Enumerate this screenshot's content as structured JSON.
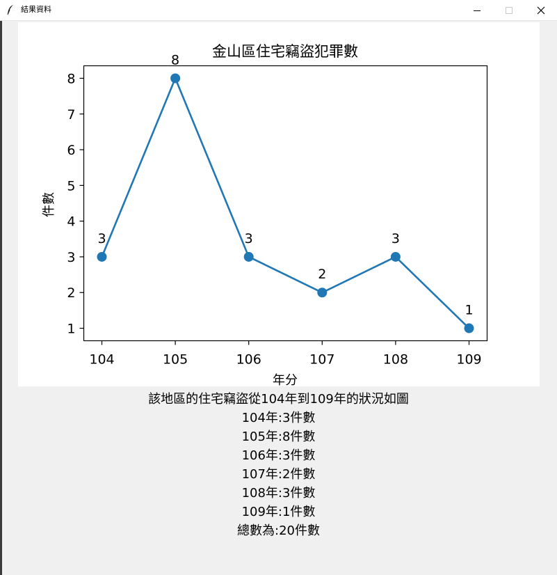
{
  "window": {
    "title": "結果資料",
    "icon": "feather-icon"
  },
  "chart_data": {
    "type": "line",
    "title": "金山區住宅竊盜犯罪數",
    "xlabel": "年分",
    "ylabel": "件數",
    "categories": [
      "104",
      "105",
      "106",
      "107",
      "108",
      "109"
    ],
    "values": [
      3,
      8,
      3,
      2,
      3,
      1
    ],
    "data_labels": [
      "3",
      "8",
      "3",
      "2",
      "3",
      "1"
    ],
    "yticks": [
      "1",
      "2",
      "3",
      "4",
      "5",
      "6",
      "7",
      "8"
    ],
    "ylim": [
      0.65,
      8.35
    ],
    "color": "#1f77b4",
    "grid": false
  },
  "summary": {
    "intro": "該地區的住宅竊盜從104年到109年的狀況如圖",
    "lines": [
      "104年:3件數",
      "105年:8件數",
      "106年:3件數",
      "107年:2件數",
      "108年:3件數",
      "109年:1件數"
    ],
    "total": "總數為:20件數"
  }
}
